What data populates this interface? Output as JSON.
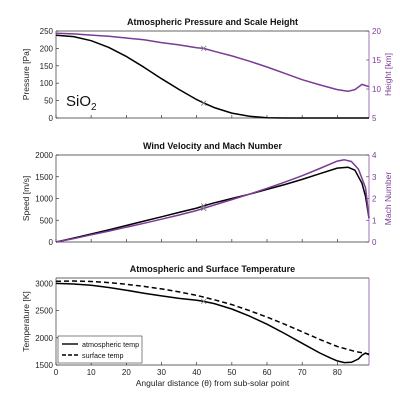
{
  "chart_data": [
    {
      "type": "line",
      "title": "Atmospheric Pressure and Scale Height",
      "xlim": [
        0,
        89
      ],
      "ylim": [
        0,
        250
      ],
      "ylabel": "Pressure [Pa]",
      "yticks": [
        0,
        50,
        100,
        150,
        200,
        250
      ],
      "y2lim": [
        5,
        20
      ],
      "y2label": "Height [km]",
      "y2ticks": [
        5,
        10,
        15,
        20
      ],
      "annotation": {
        "text": "SiO",
        "subscript": "2"
      },
      "series": [
        {
          "axis": "left",
          "color": "#000000",
          "x": [
            0,
            5,
            10,
            15,
            20,
            25,
            30,
            35,
            40,
            42,
            45,
            50,
            55,
            60,
            65,
            70,
            75,
            80,
            85,
            89
          ],
          "y": [
            238,
            234,
            222,
            203,
            177,
            146,
            113,
            82,
            53,
            43,
            30,
            14,
            5,
            1,
            0,
            0,
            0,
            0,
            0,
            0
          ],
          "marker": {
            "x": 42,
            "y": 43
          }
        },
        {
          "axis": "right",
          "color": "#7b3a96",
          "x": [
            0,
            5,
            10,
            15,
            20,
            25,
            30,
            35,
            40,
            42,
            45,
            50,
            55,
            60,
            65,
            70,
            75,
            80,
            83,
            85,
            87,
            89
          ],
          "y": [
            19.6,
            19.5,
            19.3,
            19.1,
            18.8,
            18.5,
            18.0,
            17.6,
            17.1,
            17.0,
            16.5,
            15.7,
            14.8,
            13.8,
            12.7,
            11.6,
            10.7,
            9.9,
            9.6,
            9.9,
            10.8,
            10.4
          ],
          "marker": {
            "x": 42,
            "y": 17.0
          }
        }
      ]
    },
    {
      "type": "line",
      "title": "Wind Velocity and Mach Number",
      "xlim": [
        0,
        89
      ],
      "ylim": [
        0,
        2000
      ],
      "ylabel": "Speed [m/s]",
      "yticks": [
        0,
        500,
        1000,
        1500,
        2000
      ],
      "y2lim": [
        0,
        4
      ],
      "y2label": "Mach Number",
      "y2ticks": [
        0,
        1,
        2,
        3,
        4
      ],
      "series": [
        {
          "axis": "left",
          "color": "#000000",
          "x": [
            0,
            5,
            10,
            15,
            20,
            25,
            30,
            35,
            40,
            42,
            45,
            50,
            55,
            60,
            65,
            70,
            75,
            80,
            83,
            85,
            87,
            88,
            89
          ],
          "y": [
            0,
            90,
            185,
            280,
            380,
            480,
            580,
            680,
            780,
            830,
            900,
            1000,
            1100,
            1210,
            1320,
            1440,
            1570,
            1700,
            1720,
            1650,
            1350,
            1050,
            550
          ],
          "marker": {
            "x": 42,
            "y": 830
          }
        },
        {
          "axis": "right",
          "color": "#7b3a96",
          "x": [
            0,
            5,
            10,
            15,
            20,
            25,
            30,
            35,
            40,
            42,
            45,
            50,
            55,
            60,
            65,
            70,
            75,
            80,
            82,
            84,
            86,
            88,
            89
          ],
          "y": [
            0,
            0.15,
            0.33,
            0.5,
            0.68,
            0.86,
            1.05,
            1.24,
            1.45,
            1.55,
            1.7,
            1.95,
            2.2,
            2.47,
            2.75,
            3.05,
            3.38,
            3.72,
            3.78,
            3.7,
            3.35,
            2.5,
            1.1
          ],
          "marker": {
            "x": 42,
            "y": 1.55
          }
        }
      ]
    },
    {
      "type": "line",
      "title": "Atmospheric and Surface Temperature",
      "xlim": [
        0,
        89
      ],
      "xticks": [
        0,
        10,
        20,
        30,
        40,
        50,
        60,
        70,
        80
      ],
      "xlabel": "Angular distance (θ) from sub-solar point",
      "ylim": [
        1500,
        3100
      ],
      "ylabel": "Temperature [K]",
      "yticks": [
        1500,
        2000,
        2500,
        3000
      ],
      "legend": {
        "position": "bottom-left",
        "entries": [
          "atmospheric temp",
          "surface temp"
        ]
      },
      "series": [
        {
          "name": "atmospheric temp",
          "axis": "left",
          "color": "#000000",
          "dash": "solid",
          "x": [
            0,
            5,
            10,
            15,
            20,
            25,
            30,
            35,
            40,
            42,
            45,
            50,
            55,
            60,
            65,
            70,
            75,
            78,
            80,
            82,
            84,
            86,
            87,
            88,
            89
          ],
          "y": [
            3000,
            2990,
            2965,
            2925,
            2875,
            2820,
            2770,
            2725,
            2690,
            2670,
            2630,
            2530,
            2400,
            2250,
            2080,
            1900,
            1720,
            1630,
            1575,
            1545,
            1550,
            1610,
            1680,
            1720,
            1690
          ],
          "marker": {
            "x": 42,
            "y": 2670
          }
        },
        {
          "name": "surface temp",
          "axis": "left",
          "color": "#000000",
          "dash": "dashed",
          "x": [
            0,
            5,
            10,
            15,
            20,
            25,
            30,
            35,
            40,
            45,
            50,
            55,
            60,
            65,
            70,
            75,
            80,
            85,
            89
          ],
          "y": [
            3040,
            3045,
            3035,
            3015,
            2985,
            2945,
            2900,
            2845,
            2780,
            2700,
            2610,
            2500,
            2380,
            2250,
            2110,
            1970,
            1840,
            1750,
            1700
          ]
        }
      ]
    }
  ]
}
